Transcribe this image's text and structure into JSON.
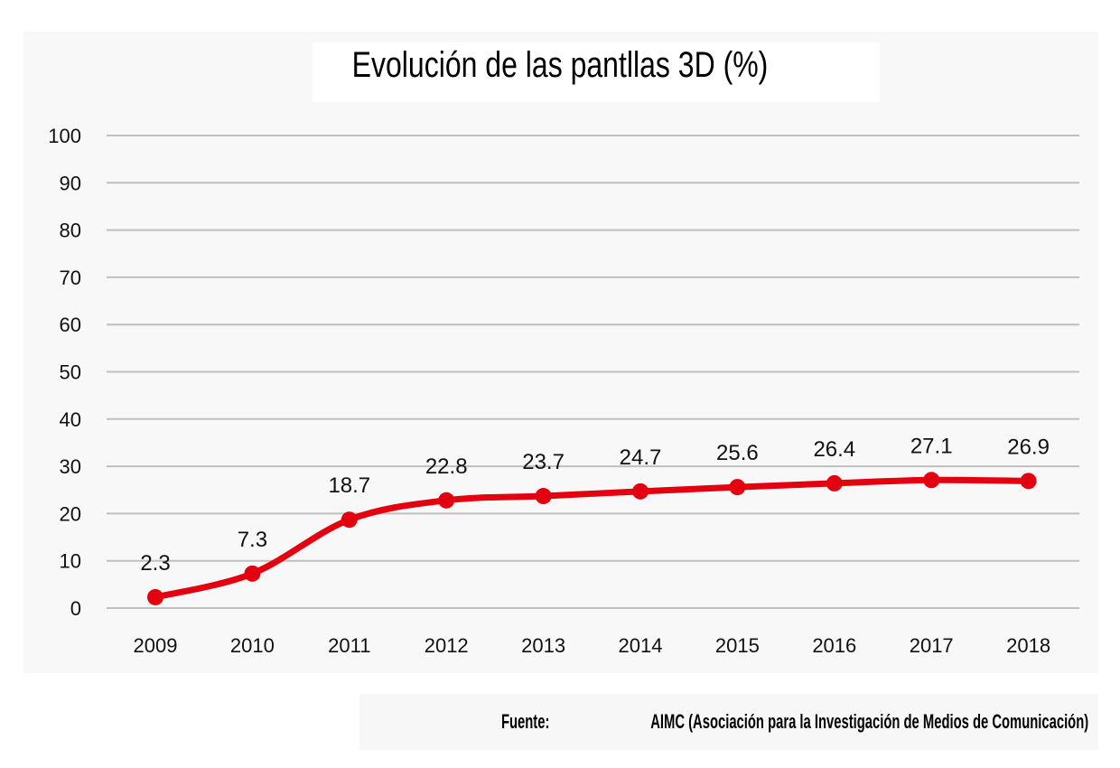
{
  "chart_data": {
    "type": "line",
    "title": "Evolución de las pantllas 3D (%)",
    "xlabel": "",
    "ylabel": "",
    "categories": [
      "2009",
      "2010",
      "2011",
      "2012",
      "2013",
      "2014",
      "2015",
      "2016",
      "2017",
      "2018"
    ],
    "series": [
      {
        "values": [
          2.3,
          7.3,
          18.7,
          22.8,
          23.7,
          24.7,
          25.6,
          26.4,
          27.1,
          26.9
        ],
        "labels": [
          "2.3",
          "7.3",
          "18.7",
          "22.8",
          "23.7",
          "24.7",
          "25.6",
          "26.4",
          "27.1",
          "26.9"
        ],
        "color": "#e3000f"
      }
    ],
    "ylim": [
      0,
      100
    ],
    "yticks": [
      "0",
      "10",
      "20",
      "30",
      "40",
      "50",
      "60",
      "70",
      "80",
      "90",
      "100"
    ],
    "grid": true,
    "smooth": true,
    "legend": "none",
    "gridline_color": "#bfbfbf"
  },
  "source": {
    "label": "Fuente:",
    "text": "AIMC (Asociación para la Investigación de Medios de Comunicación)"
  }
}
